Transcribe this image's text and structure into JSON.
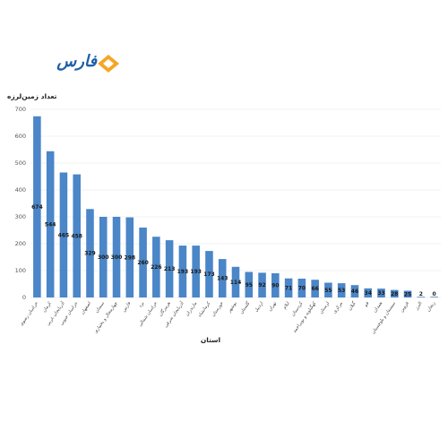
{
  "logo": {
    "text": "فارس",
    "colors": {
      "text": "#1f5fa8",
      "mark_outer": "#f5a623",
      "mark_inner": "#ffffff"
    }
  },
  "chart_data": {
    "type": "bar",
    "title": "",
    "ylabel": "تعداد زمین‌لرزه",
    "xlabel": "استان",
    "ylim": [
      0,
      700
    ],
    "yticks": [
      0,
      100,
      200,
      300,
      400,
      500,
      600,
      700
    ],
    "grid": true,
    "bar_color": "#4a86c8",
    "categories": [
      "خراسان رضوی",
      "کرمان",
      "آذربایجان غربی",
      "خراسان جنوبی",
      "اصفهان",
      "سمنان",
      "چهارمحال و بختیاری",
      "فارس",
      "یزد",
      "خراسان شمالی",
      "هرمزگان",
      "آذربایجان شرقی",
      "مازندران",
      "کرمانشاه",
      "خوزستان",
      "بوشهر",
      "گلستان",
      "اردبیل",
      "تهران",
      "ایلام",
      "کردستان",
      "کهگیلویه و بویراحمد",
      "لرستان",
      "مرکزی",
      "گیلان",
      "قم",
      "همدان",
      "سیستان و بلوچستان",
      "قزوین",
      "البرز",
      "زنجان"
    ],
    "values": [
      674,
      544,
      465,
      458,
      329,
      300,
      300,
      298,
      260,
      226,
      213,
      193,
      193,
      173,
      143,
      114,
      95,
      92,
      90,
      71,
      70,
      66,
      55,
      53,
      46,
      34,
      33,
      28,
      25,
      2,
      0
    ],
    "data_labels": [
      "674",
      "544",
      "465",
      "458",
      "329",
      "300",
      "300",
      "298",
      "260",
      "226",
      "213",
      "193",
      "193",
      "173",
      "143",
      "114",
      "95",
      "92",
      "90",
      "71",
      "70",
      "66",
      "55",
      "53",
      "46",
      "34",
      "33",
      "28",
      "25",
      "2",
      "0"
    ]
  }
}
